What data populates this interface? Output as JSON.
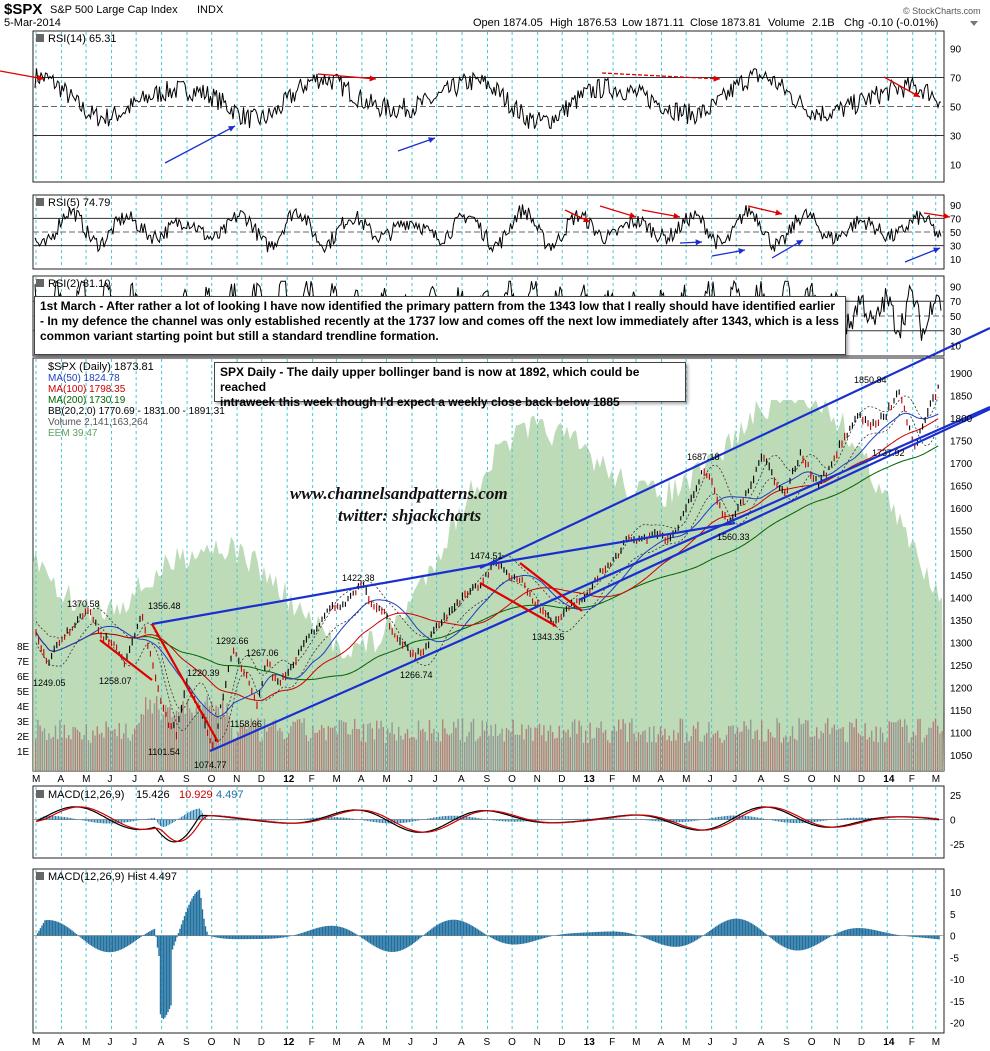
{
  "header": {
    "symbol": "$SPX",
    "name": "S&P 500 Large Cap Index",
    "exchange": "INDX",
    "date": "5-Mar-2014",
    "open_label": "Open",
    "open": "1874.05",
    "high_label": "High",
    "high": "1876.53",
    "low_label": "Low",
    "low": "1871.11",
    "close_label": "Close",
    "close": "1873.81",
    "volume_label": "Volume",
    "volume": "2.1B",
    "chg_label": "Chg",
    "chg": "-0.10 (-0.01%)",
    "credit": "© StockCharts.com"
  },
  "panels": {
    "rsi14": {
      "label": "RSI(14) 65.31",
      "ticks": [
        "90",
        "70",
        "50",
        "30",
        "10"
      ]
    },
    "rsi5": {
      "label": "RSI(5) 74.79",
      "ticks": [
        "90",
        "70",
        "50",
        "30",
        "10"
      ]
    },
    "rsi2": {
      "label": "RSI(2) 81.10",
      "ticks": [
        "90",
        "70",
        "50",
        "30",
        "10"
      ]
    },
    "main": {
      "legend": [
        {
          "text": "$SPX (Daily) 1873.81",
          "color": "#000000"
        },
        {
          "text": "MA(50) 1824.78",
          "color": "#1f3fbf"
        },
        {
          "text": "MA(100) 1798.35",
          "color": "#cc0000"
        },
        {
          "text": "MA(200) 1730.19",
          "color": "#006400"
        },
        {
          "text": "BB(20,2.0) 1770.69 - 1831.00 - 1891.31",
          "color": "#000000"
        },
        {
          "text": "Volume 2,141,163,264",
          "color": "#555555"
        },
        {
          "text": "EEM 39.47",
          "color": "#5f9f5f"
        }
      ],
      "left_ticks": [
        "8E",
        "7E",
        "6E",
        "5E",
        "4E",
        "3E",
        "2E",
        "1E"
      ]
    },
    "macd": {
      "label": "MACD(12,26,9)",
      "v1": "15.426",
      "v2": "10.929",
      "v3": "4.497",
      "ticks": [
        "25",
        "0",
        "-25"
      ]
    },
    "hist": {
      "label": "MACD(12,26,9) Hist 4.497",
      "ticks": [
        "10",
        "5",
        "0",
        "-5",
        "-10",
        "-15",
        "-20"
      ]
    }
  },
  "x_axis_labels": [
    "M",
    "A",
    "M",
    "J",
    "J",
    "A",
    "S",
    "O",
    "N",
    "D",
    "12",
    "F",
    "M",
    "A",
    "M",
    "J",
    "J",
    "A",
    "S",
    "O",
    "N",
    "D",
    "13",
    "F",
    "M",
    "A",
    "M",
    "J",
    "J",
    "A",
    "S",
    "O",
    "N",
    "D",
    "14",
    "F",
    "M"
  ],
  "notes": {
    "note1": "1st March - After rather a lot of looking I have now identified the primary pattern from the 1343 low that I really should have identified earlier\n- In my defence the channel was only established recently at the 1737 low and comes off the next low immediately after 1343, which is a less common variant starting point but still a standard trendline formation.",
    "note2": "SPX Daily - The daily upper bollinger band is now at 1892, which could be reached\nintraweek this week though I'd expect a weekly close back below 1885"
  },
  "watermark": {
    "line1": "www.channelsandpatterns.com",
    "line2": "twitter: shjackcharts"
  },
  "chart_data": {
    "type": "line",
    "title": "S&P 500 Large Cap Index",
    "y_axis_ticks": [
      1900,
      1850,
      1800,
      1750,
      1700,
      1650,
      1600,
      1550,
      1500,
      1450,
      1400,
      1350,
      1300,
      1250,
      1200,
      1150,
      1100,
      1050
    ],
    "ylim": [
      1030,
      1920
    ],
    "x_date_range": [
      "2011-03-01",
      "2014-03-05"
    ],
    "price_keypoints": [
      {
        "date": "2011-03-01",
        "value": 1320
      },
      {
        "date": "2011-03-16",
        "value": 1260
      },
      {
        "date": "2011-04-10",
        "value": 1330
      },
      {
        "date": "2011-05-02",
        "value": 1370.58
      },
      {
        "date": "2011-06-16",
        "value": 1258.07
      },
      {
        "date": "2011-07-07",
        "value": 1356.48
      },
      {
        "date": "2011-08-08",
        "value": 1119
      },
      {
        "date": "2011-08-19",
        "value": 1101.54
      },
      {
        "date": "2011-08-31",
        "value": 1220.39
      },
      {
        "date": "2011-09-22",
        "value": 1120
      },
      {
        "date": "2011-10-04",
        "value": 1074.77
      },
      {
        "date": "2011-10-27",
        "value": 1292.66
      },
      {
        "date": "2011-11-25",
        "value": 1158.66
      },
      {
        "date": "2011-12-07",
        "value": 1267.06
      },
      {
        "date": "2011-12-19",
        "value": 1202
      },
      {
        "date": "2012-02-15",
        "value": 1360
      },
      {
        "date": "2012-04-02",
        "value": 1422.38
      },
      {
        "date": "2012-06-04",
        "value": 1266.74
      },
      {
        "date": "2012-07-20",
        "value": 1375
      },
      {
        "date": "2012-09-14",
        "value": 1474.51
      },
      {
        "date": "2012-10-20",
        "value": 1420
      },
      {
        "date": "2012-11-16",
        "value": 1343.35
      },
      {
        "date": "2012-12-28",
        "value": 1402
      },
      {
        "date": "2013-02-19",
        "value": 1530
      },
      {
        "date": "2013-04-18",
        "value": 1540
      },
      {
        "date": "2013-05-22",
        "value": 1687.18
      },
      {
        "date": "2013-06-24",
        "value": 1560.33
      },
      {
        "date": "2013-08-02",
        "value": 1709
      },
      {
        "date": "2013-08-30",
        "value": 1627
      },
      {
        "date": "2013-09-18",
        "value": 1729
      },
      {
        "date": "2013-10-08",
        "value": 1646
      },
      {
        "date": "2013-11-28",
        "value": 1813
      },
      {
        "date": "2013-12-13",
        "value": 1775
      },
      {
        "date": "2014-01-15",
        "value": 1850.84
      },
      {
        "date": "2014-02-05",
        "value": 1737.92
      },
      {
        "date": "2014-03-05",
        "value": 1873.81
      }
    ],
    "price_labels": [
      "1370.58",
      "1356.48",
      "1249.05",
      "1258.07",
      "1292.66",
      "1220.39",
      "1267.06",
      "1158.66",
      "1101.54",
      "1074.77",
      "1422.38",
      "1266.74",
      "1474.51",
      "1343.35",
      "1687.18",
      "1560.33",
      "1850.84",
      "1737.92"
    ],
    "series": [
      {
        "name": "MA(50)",
        "last": 1824.78
      },
      {
        "name": "MA(100)",
        "last": 1798.35
      },
      {
        "name": "MA(200)",
        "last": 1730.19
      }
    ],
    "rsi_levels": [
      90,
      70,
      50,
      30,
      10
    ],
    "macd_ylim": [
      -35,
      30
    ],
    "hist_ylim": [
      -21,
      13
    ]
  }
}
